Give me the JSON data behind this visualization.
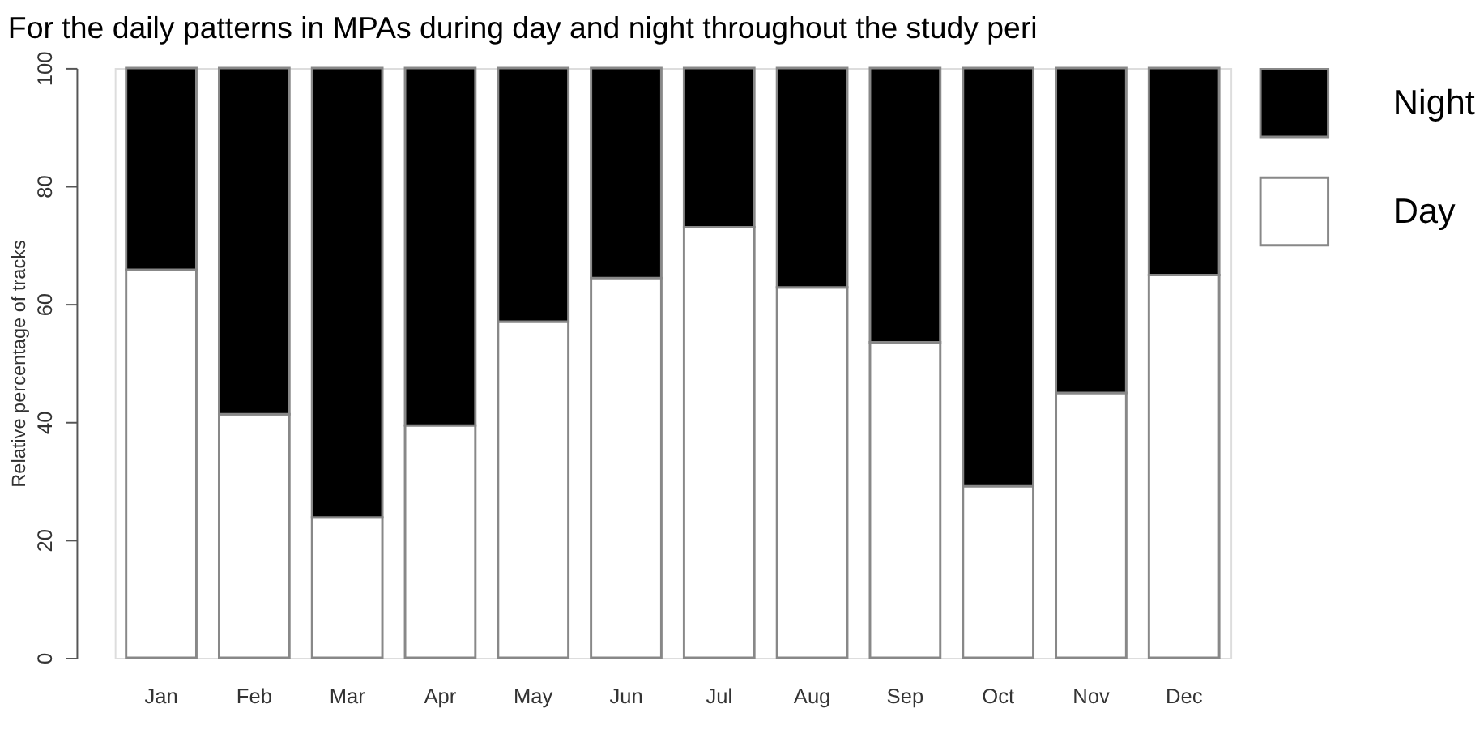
{
  "chart_data": {
    "type": "bar",
    "title": "For the daily patterns in MPAs during day and night throughout the study peri",
    "ylabel": "Relative percentage of tracks",
    "categories": [
      "Jan",
      "Feb",
      "Mar",
      "Apr",
      "May",
      "Jun",
      "Jul",
      "Aug",
      "Sep",
      "Oct",
      "Nov",
      "Dec"
    ],
    "stacked": true,
    "series": [
      {
        "name": "Day",
        "color": "#ffffff",
        "values": [
          65.8,
          41.3,
          23.8,
          39.4,
          57.0,
          64.4,
          73.0,
          62.8,
          53.5,
          29.1,
          44.9,
          64.9
        ]
      },
      {
        "name": "Night",
        "color": "#000000",
        "values": [
          34.2,
          58.7,
          76.2,
          60.6,
          43.0,
          35.6,
          27.0,
          37.2,
          46.5,
          70.9,
          55.1,
          35.1
        ]
      }
    ],
    "ylim": [
      0,
      100
    ],
    "yticks": [
      0,
      20,
      40,
      60,
      80,
      100
    ],
    "grid": false,
    "legend": "right"
  }
}
